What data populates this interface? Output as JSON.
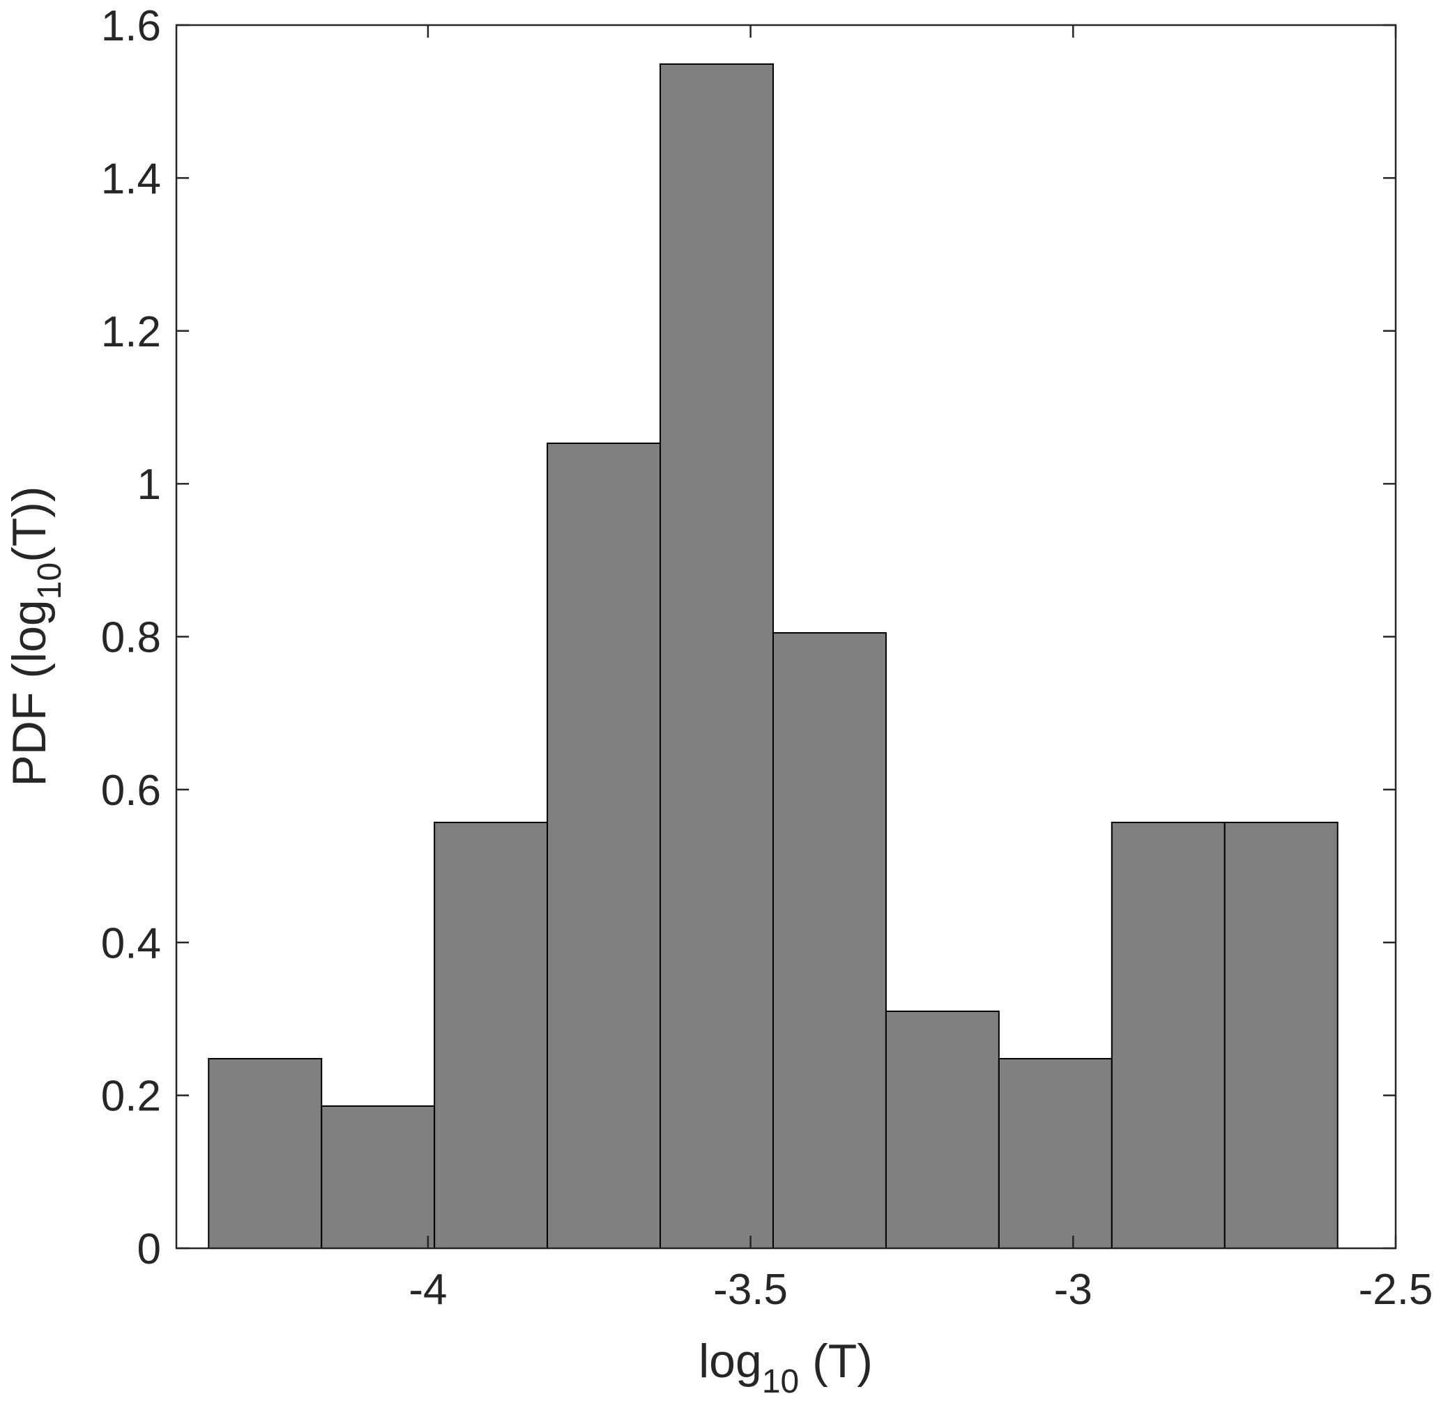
{
  "chart_data": {
    "type": "bar",
    "histogram": true,
    "bin_edges": [
      -4.34,
      -4.165,
      -3.99,
      -3.815,
      -3.64,
      -3.465,
      -3.29,
      -3.115,
      -2.94,
      -2.765,
      -2.59
    ],
    "values": [
      0.248,
      0.186,
      0.557,
      1.053,
      1.549,
      0.805,
      0.31,
      0.248,
      0.557,
      0.557
    ],
    "xlim": [
      -4.39,
      -2.5
    ],
    "ylim": [
      0,
      1.6
    ],
    "x_ticks": [
      -4,
      -3.5,
      -3,
      -2.5
    ],
    "x_tick_labels": [
      "-4",
      "-3.5",
      "-3",
      "-2.5"
    ],
    "y_ticks": [
      0,
      0.2,
      0.4,
      0.6,
      0.8,
      1,
      1.2,
      1.4,
      1.6
    ],
    "y_tick_labels": [
      "0",
      "0.2",
      "0.4",
      "0.6",
      "0.8",
      "1",
      "1.2",
      "1.4",
      "1.6"
    ],
    "xlabel": {
      "base": "log",
      "sub": "10",
      "rest": " (T)"
    },
    "ylabel": {
      "base": "PDF (log",
      "sub": "10",
      "rest": "(T))"
    },
    "bar_color": "#808080",
    "edge_color": "#000000",
    "grid": false,
    "legend": false
  }
}
